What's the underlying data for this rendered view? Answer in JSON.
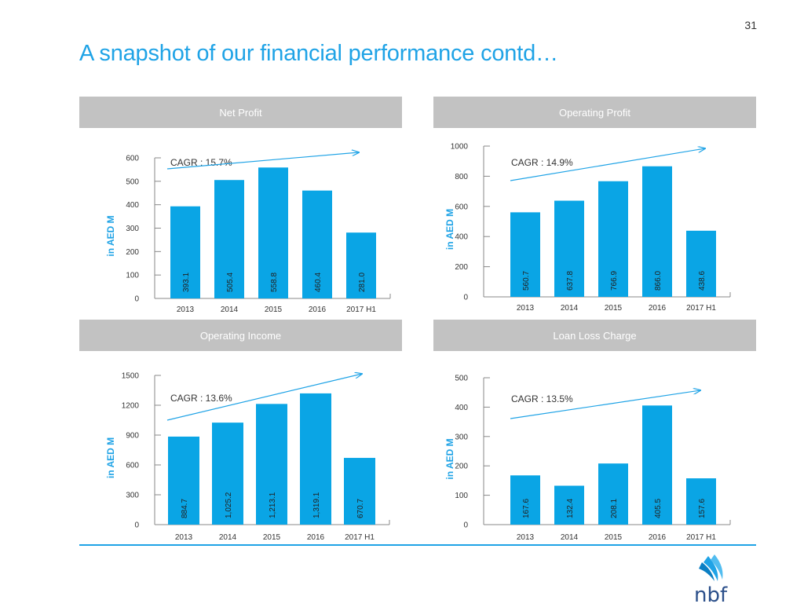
{
  "page_number": "31",
  "title": "A snapshot of our financial performance contd…",
  "colors": {
    "accent": "#1fa3e6",
    "bar": "#0aa5e5",
    "header_bg": "#c2c2c2",
    "header_text": "#ffffff"
  },
  "logo": {
    "text": "nbf",
    "icon": "nbf-wing-icon"
  },
  "chart_data": [
    {
      "type": "bar",
      "title": "Net Profit",
      "ylabel": "in AED M",
      "categories": [
        "2013",
        "2014",
        "2015",
        "2016",
        "2017 H1"
      ],
      "values": [
        393.1,
        505.4,
        558.8,
        460.4,
        281.0
      ],
      "value_labels": [
        "393.1",
        "505.4",
        "558.8",
        "460.4",
        "281.0"
      ],
      "ylim": [
        0,
        600
      ],
      "yticks": [
        0,
        100,
        200,
        300,
        400,
        500,
        600
      ],
      "annotation": "CAGR : 15.7%"
    },
    {
      "type": "bar",
      "title": "Operating Profit",
      "ylabel": "in AED M",
      "categories": [
        "2013",
        "2014",
        "2015",
        "2016",
        "2017 H1"
      ],
      "values": [
        560.7,
        637.8,
        766.9,
        866.0,
        438.6
      ],
      "value_labels": [
        "560.7",
        "637.8",
        "766.9",
        "866.0",
        "438.6"
      ],
      "ylim": [
        0,
        1000
      ],
      "yticks": [
        0,
        200,
        400,
        600,
        800,
        1000
      ],
      "annotation": "CAGR : 14.9%"
    },
    {
      "type": "bar",
      "title": "Operating Income",
      "ylabel": "in AED M",
      "categories": [
        "2013",
        "2014",
        "2015",
        "2016",
        "2017 H1"
      ],
      "values": [
        884.7,
        1025.2,
        1213.1,
        1319.1,
        670.7
      ],
      "value_labels": [
        "884.7",
        "1,025.2",
        "1,213.1",
        "1,319.1",
        "670.7"
      ],
      "ylim": [
        0,
        1500
      ],
      "yticks": [
        0,
        300,
        600,
        900,
        1200,
        1500
      ],
      "annotation": "CAGR : 13.6%"
    },
    {
      "type": "bar",
      "title": "Loan Loss Charge",
      "ylabel": "in AED M",
      "categories": [
        "2013",
        "2014",
        "2015",
        "2016",
        "2017 H1"
      ],
      "values": [
        167.6,
        132.4,
        208.1,
        405.5,
        157.6
      ],
      "value_labels": [
        "167.6",
        "132.4",
        "208.1",
        "405.5",
        "157.6"
      ],
      "ylim": [
        0,
        500
      ],
      "yticks": [
        0,
        100,
        200,
        300,
        400,
        500
      ],
      "annotation": "CAGR : 13.5%"
    }
  ]
}
